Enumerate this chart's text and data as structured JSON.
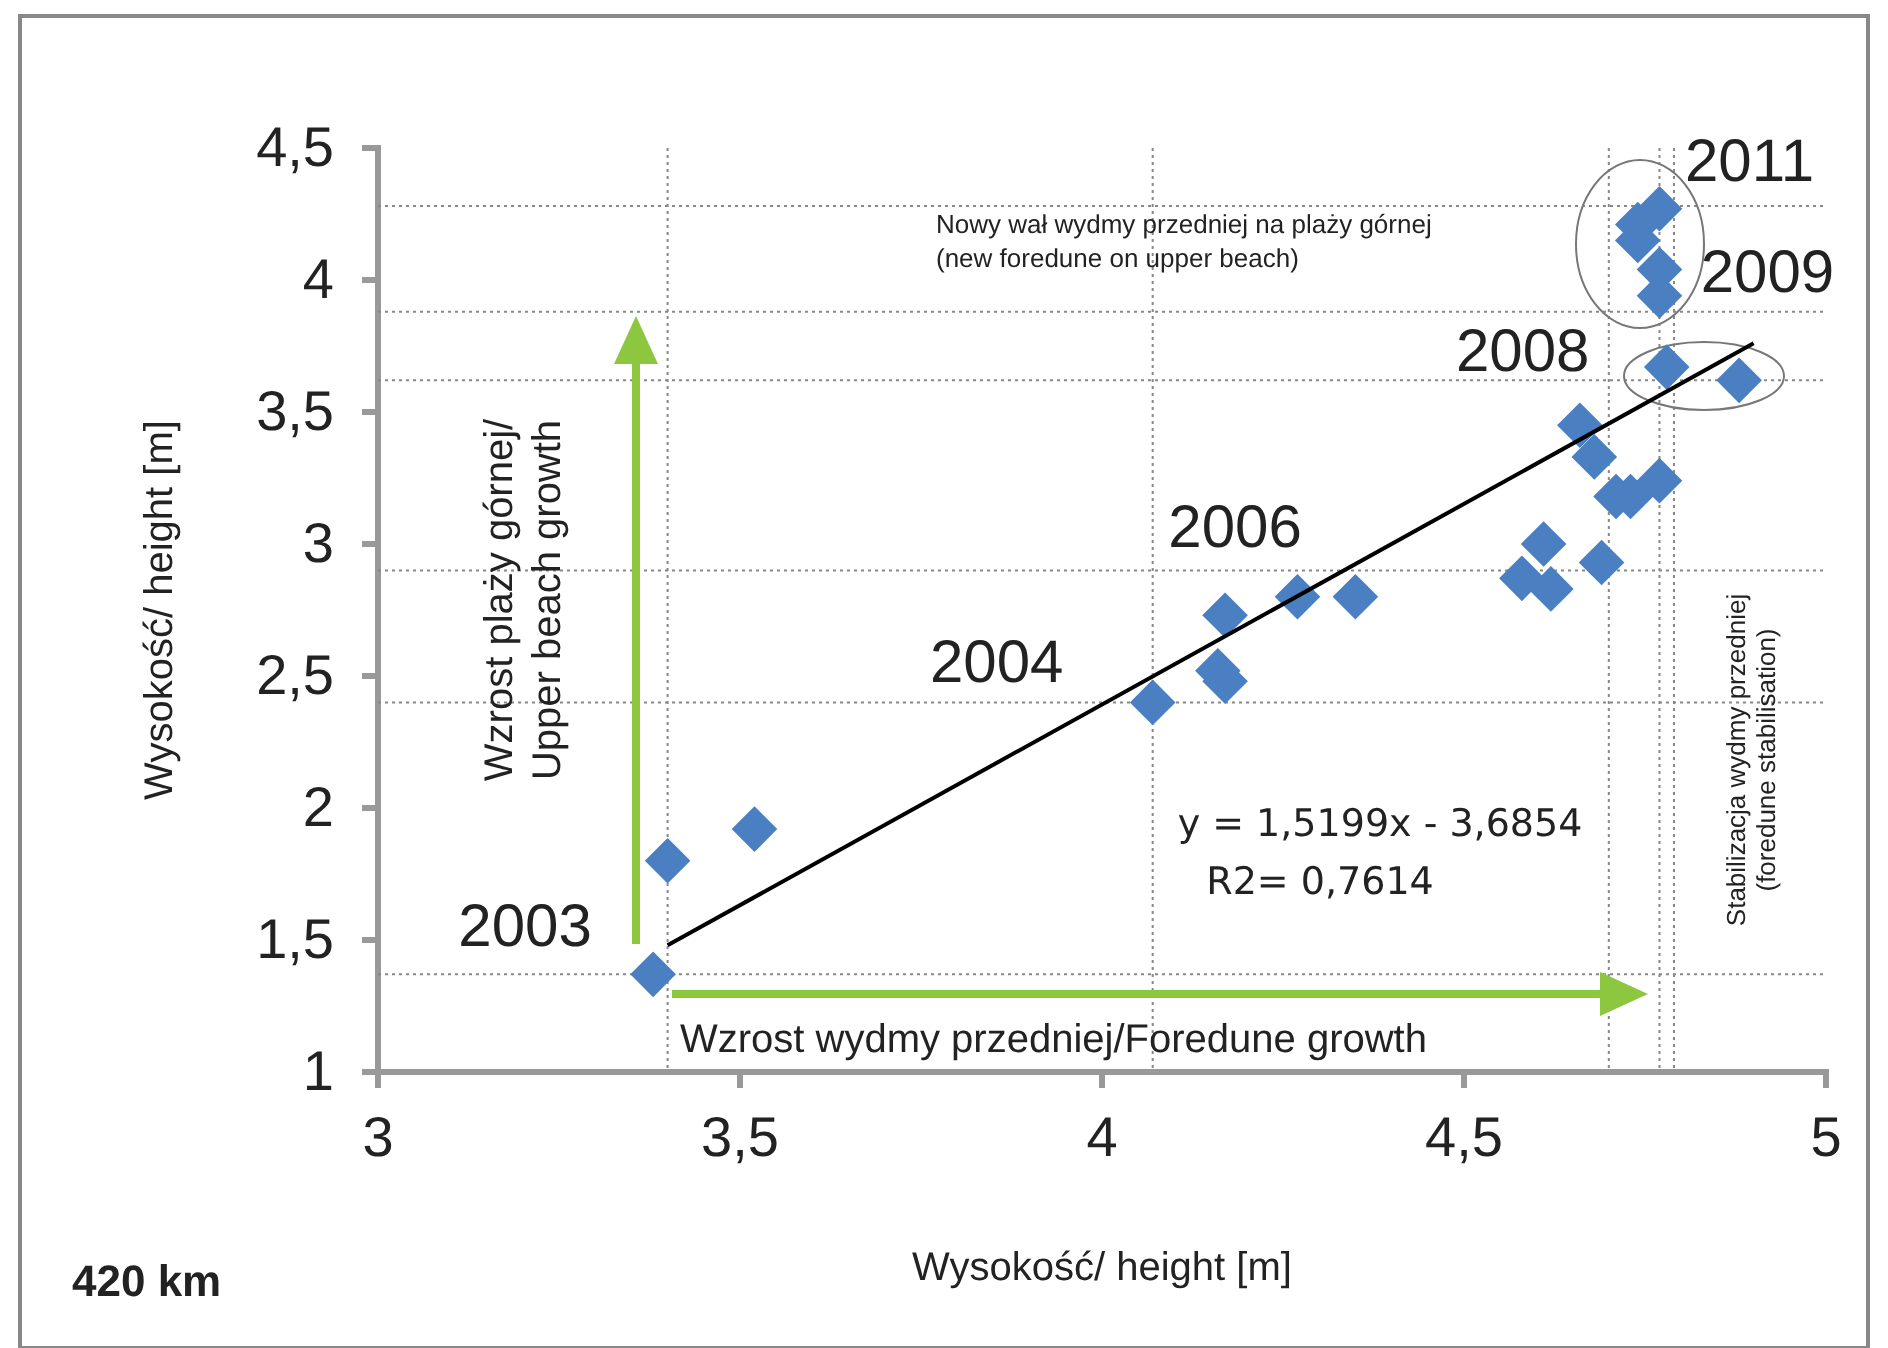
{
  "chart_data": {
    "type": "scatter",
    "xlabel": "Wysokość/ height [m]",
    "ylabel": "Wysokość/ height [m]",
    "xlim": [
      3,
      5
    ],
    "ylim": [
      1,
      4.5
    ],
    "xticks": [
      3,
      {
        "value": 3.5,
        "label": "3,5"
      },
      4,
      {
        "value": 4.5,
        "label": "4,5"
      },
      5
    ],
    "yticks": [
      1,
      {
        "value": 1.5,
        "label": "1,5"
      },
      2,
      {
        "value": 2.5,
        "label": "2,5"
      },
      3,
      {
        "value": 3.5,
        "label": "3,5"
      },
      4,
      {
        "value": 4.5,
        "label": "4,5"
      }
    ],
    "grid": false,
    "marker": "diamond",
    "series": [
      {
        "color": "#4a7fc1",
        "x": [
          3.38,
          3.4,
          3.52,
          4.07,
          4.16,
          4.17,
          4.17,
          4.27,
          4.35,
          4.58,
          4.61,
          4.62,
          4.69,
          4.66,
          4.68,
          4.71,
          4.73,
          4.77,
          4.78,
          4.88,
          4.77,
          4.74,
          4.74,
          4.77,
          4.77
        ],
        "values": [
          1.37,
          1.8,
          1.92,
          2.4,
          2.52,
          2.48,
          2.73,
          2.8,
          2.8,
          2.87,
          3.0,
          2.83,
          2.93,
          3.45,
          3.33,
          3.18,
          3.18,
          3.24,
          3.67,
          3.62,
          4.27,
          4.21,
          4.15,
          4.04,
          3.94
        ]
      },
      {
        "type": "line",
        "color": "#000000",
        "marker": "none",
        "x": [
          3.4,
          4.9
        ],
        "values": [
          1.48,
          3.76
        ]
      }
    ],
    "ref_lines": [
      {
        "axis": "y",
        "value": 1.37,
        "color": "#888888",
        "line_style": "dotted"
      },
      {
        "axis": "y",
        "value": 2.4,
        "color": "#888888",
        "line_style": "dotted"
      },
      {
        "axis": "y",
        "value": 2.9,
        "color": "#888888",
        "line_style": "dotted"
      },
      {
        "axis": "y",
        "value": 3.62,
        "color": "#888888",
        "line_style": "dotted"
      },
      {
        "axis": "y",
        "value": 3.88,
        "color": "#888888",
        "line_style": "dotted"
      },
      {
        "axis": "y",
        "value": 4.28,
        "color": "#888888",
        "line_style": "dotted"
      },
      {
        "axis": "x",
        "value": 3.4,
        "color": "#888888",
        "line_style": "dotted"
      },
      {
        "axis": "x",
        "value": 4.07,
        "color": "#888888",
        "line_style": "dotted"
      },
      {
        "axis": "x",
        "value": 4.7,
        "color": "#888888",
        "line_style": "dotted"
      },
      {
        "axis": "x",
        "value": 4.77,
        "color": "#888888",
        "line_style": "dotted"
      },
      {
        "axis": "x",
        "value": 4.79,
        "color": "#888888",
        "line_style": "dotted"
      }
    ],
    "annotations": [
      {
        "text": "2003",
        "x": 3.38,
        "y": 1.37
      },
      {
        "text": "2004",
        "x": 4.07,
        "y": 2.4
      },
      {
        "text": "2006",
        "x": 4.17,
        "y": 2.73
      },
      {
        "text": "2008",
        "x": 4.78,
        "y": 3.67
      },
      {
        "text": "2009",
        "x": 4.77,
        "y": 3.94
      },
      {
        "text": "2011",
        "x": 4.77,
        "y": 4.27
      },
      "y = 1,5199x - 3,6854",
      "R2= 0,7614",
      "Nowy wał wydmy przedniej na plaży górnej\n(new foredune on upper beach)",
      "Wzrost plaży górnej/\nUpper beach growth",
      "Wzrost wydmy przedniej/Foredune growth",
      "Stabilizacja wydmy przedniej\n(foredune stabilisation)",
      "420 km"
    ]
  }
}
